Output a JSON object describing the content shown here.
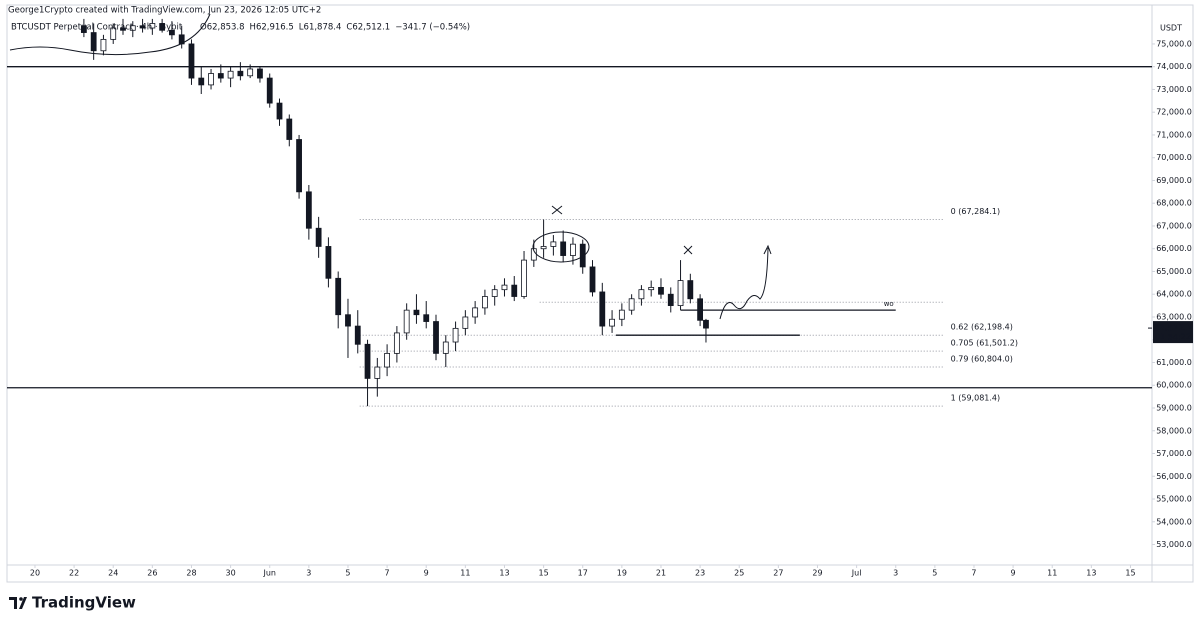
{
  "chart_data": {
    "type": "candlestick",
    "header": "George1Crypto created with TradingView.com, Jun 23, 2026 12:05 UTC+2",
    "symbol": "BTCUSDT Perpetual Contract · 4h · Bybit",
    "ohlc_legend": [
      "O62,853.8",
      "H62,916.5",
      "L61,878.4",
      "C62,512.1",
      "−341.7 (−0.54%)"
    ],
    "currency": "USDT",
    "brand": "TradingView",
    "up_color": "#ffffff",
    "down_color": "#131722",
    "border_color": "#131722",
    "last_price": {
      "value": 62512.1,
      "label": "62,512.1"
    },
    "countdown": "01:54:22",
    "ylim": [
      52100,
      76140
    ],
    "yticks": [
      {
        "value": 75000,
        "label": "75,000.0"
      },
      {
        "value": 74000,
        "label": "74,000.0"
      },
      {
        "value": 73000,
        "label": "73,000.0"
      },
      {
        "value": 72000,
        "label": "72,000.0"
      },
      {
        "value": 71000,
        "label": "71,000.0"
      },
      {
        "value": 70000,
        "label": "70,000.0"
      },
      {
        "value": 69000,
        "label": "69,000.0"
      },
      {
        "value": 68000,
        "label": "68,000.0"
      },
      {
        "value": 67000,
        "label": "67,000.0"
      },
      {
        "value": 66000,
        "label": "66,000.0"
      },
      {
        "value": 65000,
        "label": "65,000.0"
      },
      {
        "value": 64000,
        "label": "64,000.0"
      },
      {
        "value": 63000,
        "label": "63,000.0"
      },
      {
        "value": 62000,
        "label": "62,000.0"
      },
      {
        "value": 61000,
        "label": "61,000.0"
      },
      {
        "value": 60000,
        "label": "60,000.0"
      },
      {
        "value": 59000,
        "label": "59,000.0"
      },
      {
        "value": 58000,
        "label": "58,000.0"
      },
      {
        "value": 57000,
        "label": "57,000.0"
      },
      {
        "value": 56000,
        "label": "56,000.0"
      },
      {
        "value": 55000,
        "label": "55,000.0"
      },
      {
        "value": 54000,
        "label": "54,000.0"
      },
      {
        "value": 53000,
        "label": "53,000.0"
      }
    ],
    "xlim": [
      -1.43,
      57.1
    ],
    "xticks": [
      {
        "value": 0,
        "label": "20"
      },
      {
        "value": 2,
        "label": "22"
      },
      {
        "value": 4,
        "label": "24"
      },
      {
        "value": 6,
        "label": "26"
      },
      {
        "value": 8,
        "label": "28"
      },
      {
        "value": 10,
        "label": "30"
      },
      {
        "value": 12,
        "label": "Jun"
      },
      {
        "value": 14,
        "label": "3"
      },
      {
        "value": 16,
        "label": "5"
      },
      {
        "value": 18,
        "label": "7"
      },
      {
        "value": 20,
        "label": "9"
      },
      {
        "value": 22,
        "label": "11"
      },
      {
        "value": 24,
        "label": "13"
      },
      {
        "value": 26,
        "label": "15"
      },
      {
        "value": 28,
        "label": "17"
      },
      {
        "value": 30,
        "label": "19"
      },
      {
        "value": 32,
        "label": "21"
      },
      {
        "value": 34,
        "label": "23"
      },
      {
        "value": 36,
        "label": "25"
      },
      {
        "value": 38,
        "label": "27"
      },
      {
        "value": 40,
        "label": "29"
      },
      {
        "value": 42,
        "label": "Jul"
      },
      {
        "value": 44,
        "label": "3"
      },
      {
        "value": 46,
        "label": "5"
      },
      {
        "value": 48,
        "label": "7"
      },
      {
        "value": 50,
        "label": "9"
      },
      {
        "value": 52,
        "label": "11"
      },
      {
        "value": 54,
        "label": "13"
      },
      {
        "value": 56,
        "label": "15"
      }
    ],
    "candles": [
      {
        "x": 2.5,
        "open": 75800,
        "high": 76100,
        "low": 75300,
        "close": 75500
      },
      {
        "x": 3.0,
        "open": 75500,
        "high": 75900,
        "low": 74300,
        "close": 74700
      },
      {
        "x": 3.5,
        "open": 74700,
        "high": 75400,
        "low": 74500,
        "close": 75200
      },
      {
        "x": 4.0,
        "open": 75200,
        "high": 75900,
        "low": 75000,
        "close": 75700
      },
      {
        "x": 4.5,
        "open": 75700,
        "high": 76100,
        "low": 75400,
        "close": 75600
      },
      {
        "x": 5.0,
        "open": 75600,
        "high": 76000,
        "low": 75300,
        "close": 75800
      },
      {
        "x": 5.5,
        "open": 75800,
        "high": 76100,
        "low": 75500,
        "close": 75700
      },
      {
        "x": 6.0,
        "open": 75700,
        "high": 76100,
        "low": 75400,
        "close": 75900
      },
      {
        "x": 6.5,
        "open": 75900,
        "high": 76100,
        "low": 75500,
        "close": 75600
      },
      {
        "x": 7.0,
        "open": 75600,
        "high": 76000,
        "low": 75200,
        "close": 75400
      },
      {
        "x": 7.5,
        "open": 75400,
        "high": 75800,
        "low": 74800,
        "close": 75000
      },
      {
        "x": 8.0,
        "open": 75000,
        "high": 75200,
        "low": 73200,
        "close": 73500
      },
      {
        "x": 8.5,
        "open": 73500,
        "high": 74000,
        "low": 72800,
        "close": 73200
      },
      {
        "x": 9.0,
        "open": 73200,
        "high": 73900,
        "low": 73000,
        "close": 73700
      },
      {
        "x": 9.5,
        "open": 73700,
        "high": 74100,
        "low": 73300,
        "close": 73500
      },
      {
        "x": 10.0,
        "open": 73500,
        "high": 74000,
        "low": 73100,
        "close": 73800
      },
      {
        "x": 10.5,
        "open": 73800,
        "high": 74200,
        "low": 73400,
        "close": 73600
      },
      {
        "x": 11.0,
        "open": 73600,
        "high": 74100,
        "low": 73500,
        "close": 73900
      },
      {
        "x": 11.5,
        "open": 73900,
        "high": 74000,
        "low": 73300,
        "close": 73500
      },
      {
        "x": 12.0,
        "open": 73500,
        "high": 73700,
        "low": 72200,
        "close": 72400
      },
      {
        "x": 12.5,
        "open": 72400,
        "high": 72600,
        "low": 71400,
        "close": 71700
      },
      {
        "x": 13.0,
        "open": 71700,
        "high": 71900,
        "low": 70500,
        "close": 70800
      },
      {
        "x": 13.5,
        "open": 70800,
        "high": 71000,
        "low": 68200,
        "close": 68500
      },
      {
        "x": 14.0,
        "open": 68500,
        "high": 68800,
        "low": 66400,
        "close": 66900
      },
      {
        "x": 14.5,
        "open": 66900,
        "high": 67400,
        "low": 65600,
        "close": 66100
      },
      {
        "x": 15.0,
        "open": 66100,
        "high": 66500,
        "low": 64300,
        "close": 64700
      },
      {
        "x": 15.5,
        "open": 64700,
        "high": 65000,
        "low": 62500,
        "close": 63100
      },
      {
        "x": 16.0,
        "open": 63100,
        "high": 63800,
        "low": 61200,
        "close": 62600
      },
      {
        "x": 16.5,
        "open": 62600,
        "high": 63300,
        "low": 61400,
        "close": 61800
      },
      {
        "x": 17.0,
        "open": 61800,
        "high": 62000,
        "low": 59081.4,
        "close": 60300
      },
      {
        "x": 17.5,
        "open": 60300,
        "high": 61200,
        "low": 59500,
        "close": 60800
      },
      {
        "x": 18.0,
        "open": 60800,
        "high": 61800,
        "low": 60400,
        "close": 61400
      },
      {
        "x": 18.5,
        "open": 61400,
        "high": 62600,
        "low": 61000,
        "close": 62300
      },
      {
        "x": 19.0,
        "open": 62300,
        "high": 63600,
        "low": 62000,
        "close": 63300
      },
      {
        "x": 19.5,
        "open": 63300,
        "high": 64000,
        "low": 62700,
        "close": 63100
      },
      {
        "x": 20.0,
        "open": 63100,
        "high": 63700,
        "low": 62500,
        "close": 62800
      },
      {
        "x": 20.5,
        "open": 62800,
        "high": 63100,
        "low": 61100,
        "close": 61400
      },
      {
        "x": 21.0,
        "open": 61400,
        "high": 62200,
        "low": 60800,
        "close": 61900
      },
      {
        "x": 21.5,
        "open": 61900,
        "high": 62800,
        "low": 61500,
        "close": 62500
      },
      {
        "x": 22.0,
        "open": 62500,
        "high": 63300,
        "low": 62200,
        "close": 63000
      },
      {
        "x": 22.5,
        "open": 63000,
        "high": 63700,
        "low": 62700,
        "close": 63400
      },
      {
        "x": 23.0,
        "open": 63400,
        "high": 64200,
        "low": 63100,
        "close": 63900
      },
      {
        "x": 23.5,
        "open": 63900,
        "high": 64400,
        "low": 63500,
        "close": 64200
      },
      {
        "x": 24.0,
        "open": 64200,
        "high": 64700,
        "low": 63900,
        "close": 64400
      },
      {
        "x": 24.5,
        "open": 64400,
        "high": 64800,
        "low": 63700,
        "close": 63900
      },
      {
        "x": 25.0,
        "open": 63900,
        "high": 65900,
        "low": 63800,
        "close": 65500
      },
      {
        "x": 25.5,
        "open": 65500,
        "high": 66400,
        "low": 65200,
        "close": 66000
      },
      {
        "x": 26.0,
        "open": 66000,
        "high": 67284.1,
        "low": 65600,
        "close": 66100
      },
      {
        "x": 26.5,
        "open": 66100,
        "high": 66600,
        "low": 65700,
        "close": 66300
      },
      {
        "x": 27.0,
        "open": 66300,
        "high": 66800,
        "low": 65400,
        "close": 65700
      },
      {
        "x": 27.5,
        "open": 65700,
        "high": 66500,
        "low": 65300,
        "close": 66200
      },
      {
        "x": 28.0,
        "open": 66200,
        "high": 66400,
        "low": 64900,
        "close": 65200
      },
      {
        "x": 28.5,
        "open": 65200,
        "high": 65500,
        "low": 63900,
        "close": 64100
      },
      {
        "x": 29.0,
        "open": 64100,
        "high": 64500,
        "low": 62200,
        "close": 62600
      },
      {
        "x": 29.5,
        "open": 62600,
        "high": 63300,
        "low": 62300,
        "close": 62900
      },
      {
        "x": 30.0,
        "open": 62900,
        "high": 63600,
        "low": 62600,
        "close": 63300
      },
      {
        "x": 30.5,
        "open": 63300,
        "high": 64000,
        "low": 63100,
        "close": 63800
      },
      {
        "x": 31.0,
        "open": 63800,
        "high": 64400,
        "low": 63500,
        "close": 64200
      },
      {
        "x": 31.5,
        "open": 64200,
        "high": 64600,
        "low": 63900,
        "close": 64300
      },
      {
        "x": 32.0,
        "open": 64300,
        "high": 64700,
        "low": 63800,
        "close": 64000
      },
      {
        "x": 32.5,
        "open": 64000,
        "high": 64300,
        "low": 63200,
        "close": 63500
      },
      {
        "x": 33.0,
        "open": 63500,
        "high": 65500,
        "low": 63300,
        "close": 64600
      },
      {
        "x": 33.5,
        "open": 64600,
        "high": 64900,
        "low": 63600,
        "close": 63800
      },
      {
        "x": 34.0,
        "open": 63800,
        "high": 64000,
        "low": 62600,
        "close": 62853.8
      },
      {
        "x": 34.3,
        "open": 62853.8,
        "high": 62916.5,
        "low": 61878.4,
        "close": 62512.1
      }
    ],
    "fib_range": [
      16.6,
      46.5
    ],
    "fib_levels": [
      {
        "price": 67284.1,
        "label": "0 (67,284.1)",
        "color": "#555555"
      },
      {
        "price": 62198.4,
        "label": "0.62 (62,198.4)",
        "color": "#555555"
      },
      {
        "price": 61501.2,
        "label": "0.705 (61,501.2)",
        "color": "#2a2aa8"
      },
      {
        "price": 60804.0,
        "label": "0.79 (60,804.0)",
        "color": "#555555"
      },
      {
        "price": 59081.4,
        "label": "1 (59,081.4)",
        "color": "#555555"
      }
    ],
    "horizontal_lines": [
      {
        "price": 74000
      },
      {
        "price": 59890
      }
    ],
    "segments": [
      {
        "price": 63650,
        "x": [
          25.8,
          46.5
        ],
        "style": "dotted"
      },
      {
        "price": 63300,
        "x": [
          33.0,
          44.0
        ],
        "style": "solid",
        "label": "wo"
      },
      {
        "price": 62200,
        "x": [
          29.7,
          39.1
        ],
        "style": "solid"
      }
    ]
  }
}
